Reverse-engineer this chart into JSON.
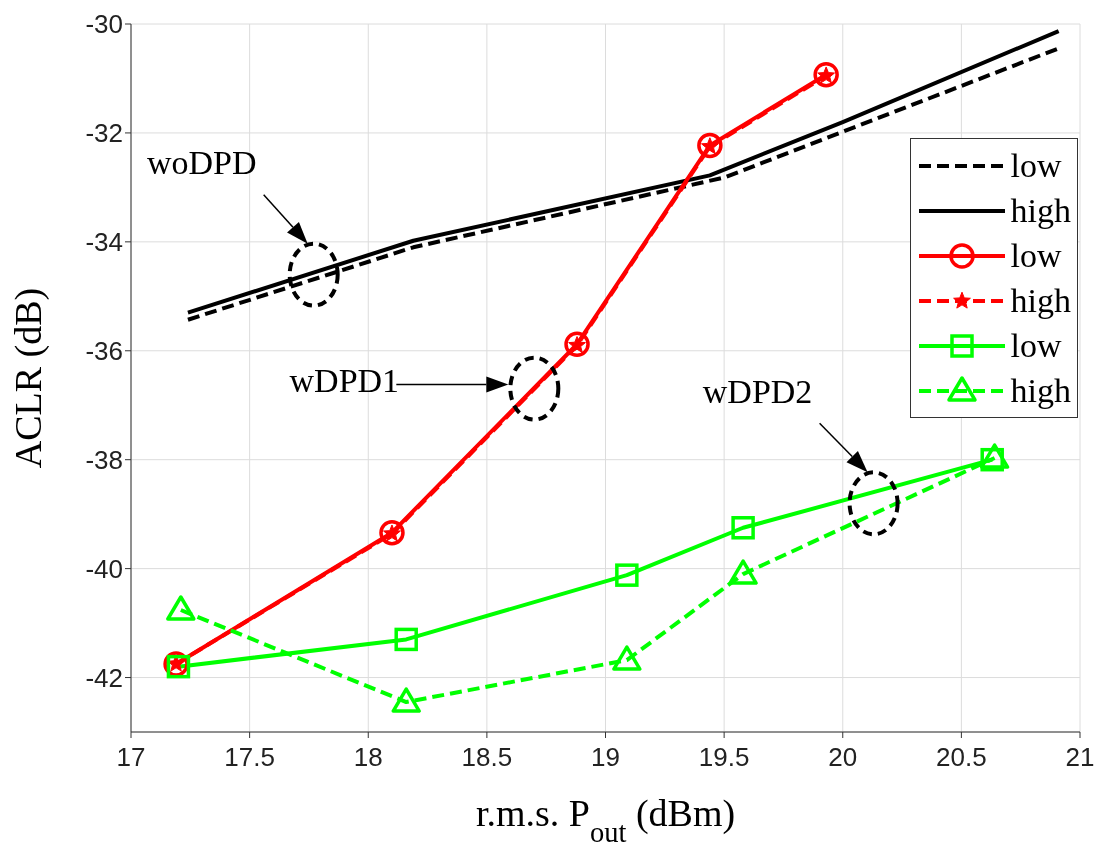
{
  "chart_data": {
    "type": "line",
    "xlabel": "r.m.s. P$_{out}$ (dBm)",
    "ylabel": "ACLR (dB)",
    "xlim": [
      17,
      21
    ],
    "xticks": [
      17,
      17.5,
      18,
      18.5,
      19,
      19.5,
      20,
      20.5,
      21
    ],
    "ylim": [
      -43,
      -30
    ],
    "yticks": [
      -42,
      -40,
      -38,
      -36,
      -34,
      -32,
      -30
    ],
    "grid": true,
    "legend": "right",
    "annotations": [
      "woDPD",
      "wDPD1",
      "wDPD2"
    ],
    "series": [
      {
        "name": "low",
        "color": "#000000",
        "line_style": "dashed",
        "marker": "none",
        "x": [
          17.24,
          18.19,
          19.5,
          20.92
        ],
        "values": [
          -35.43,
          -34.1,
          -32.82,
          -30.43
        ]
      },
      {
        "name": "high",
        "color": "#000000",
        "line_style": "solid",
        "marker": "none",
        "x": [
          17.24,
          18.19,
          19.44,
          20.0,
          20.91
        ],
        "values": [
          -35.3,
          -33.98,
          -32.78,
          -31.8,
          -30.13
        ]
      },
      {
        "name": "low",
        "color": "#ff0000",
        "line_style": "solid",
        "marker": "circle",
        "x": [
          17.19,
          18.1,
          18.88,
          19.44,
          19.93
        ],
        "values": [
          -41.75,
          -39.34,
          -35.88,
          -32.23,
          -30.93
        ]
      },
      {
        "name": "high",
        "color": "#ff0000",
        "line_style": "dashed",
        "marker": "star",
        "x": [
          17.19,
          18.1,
          18.88,
          19.44,
          19.93
        ],
        "values": [
          -41.75,
          -39.36,
          -35.9,
          -32.25,
          -30.95
        ]
      },
      {
        "name": "low",
        "color": "#00ff00",
        "line_style": "solid",
        "marker": "square",
        "x": [
          17.2,
          18.16,
          19.09,
          19.58,
          20.63
        ],
        "values": [
          -41.8,
          -41.3,
          -40.12,
          -39.25,
          -38.0
        ]
      },
      {
        "name": "high",
        "color": "#00ff00",
        "line_style": "dashed",
        "marker": "triangle",
        "x": [
          17.21,
          18.16,
          19.09,
          19.58,
          20.64
        ],
        "values": [
          -40.76,
          -42.45,
          -41.68,
          -40.1,
          -37.97
        ]
      }
    ]
  }
}
